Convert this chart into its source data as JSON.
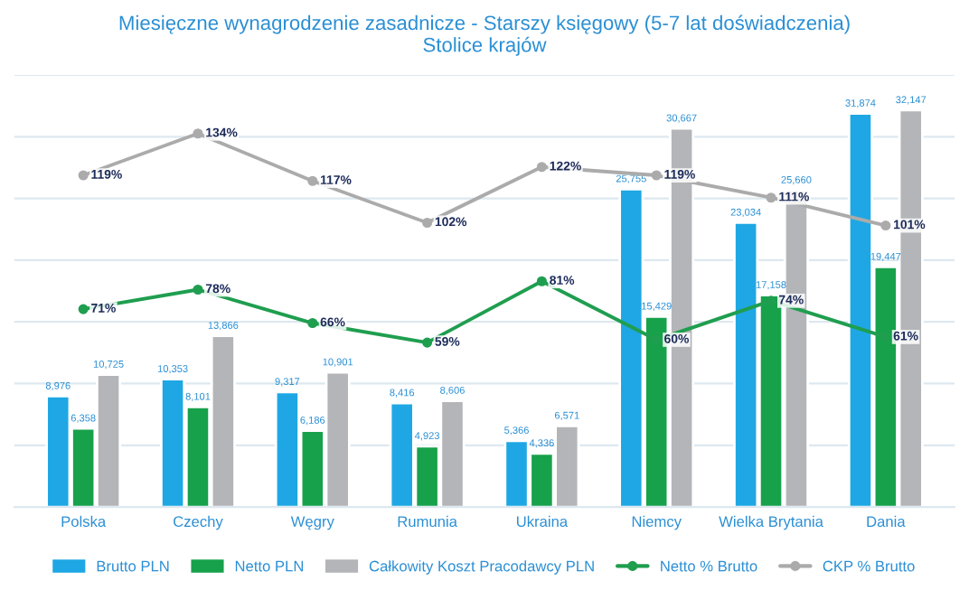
{
  "chart_data": {
    "type": "bar",
    "title": "Miesięczne wynagrodzenie zasadnicze - Starszy księgowy (5-7 lat doświadczenia)\nStolice krajów",
    "categories": [
      "Polska",
      "Czechy",
      "Węgry",
      "Rumunia",
      "Ukraina",
      "Niemcy",
      "Wielka Brytania",
      "Dania"
    ],
    "series": [
      {
        "name": "Brutto PLN",
        "color": "#1ea7e4",
        "values": [
          8976,
          10353,
          9317,
          8416,
          5366,
          25755,
          23034,
          31874
        ],
        "value_labels": [
          "8,976",
          "10,353",
          "9,317",
          "8,416",
          "5,366",
          "25,755",
          "23,034",
          "31,874"
        ]
      },
      {
        "name": "Netto PLN",
        "color": "#17a14b",
        "values": [
          6358,
          8101,
          6186,
          4923,
          4336,
          15429,
          17158,
          19447
        ],
        "value_labels": [
          "6,358",
          "8,101",
          "6,186",
          "4,923",
          "4,336",
          "15,429",
          "17,158",
          "19,447"
        ]
      },
      {
        "name": "Całkowity Koszt Pracodawcy PLN",
        "color": "#b4b5b8",
        "values": [
          10725,
          13866,
          10901,
          8606,
          6571,
          30667,
          25660,
          32147
        ],
        "value_labels": [
          "10,725",
          "13,866",
          "10,901",
          "8,606",
          "6,571",
          "30,667",
          "25,660",
          "32,147"
        ]
      },
      {
        "name": "Netto % Brutto",
        "type": "line",
        "axis": "y2",
        "color": "#1f9e4f",
        "marker": "circle",
        "values": [
          71,
          78,
          66,
          59,
          81,
          60,
          74,
          61
        ],
        "value_labels": [
          "71%",
          "78%",
          "66%",
          "59%",
          "81%",
          "60%",
          "74%",
          "61%"
        ]
      },
      {
        "name": "CKP % Brutto",
        "type": "line",
        "axis": "y2",
        "color": "#ababab",
        "marker": "circle",
        "values": [
          119,
          134,
          117,
          102,
          122,
          119,
          111,
          101
        ],
        "value_labels": [
          "119%",
          "134%",
          "117%",
          "102%",
          "122%",
          "119%",
          "111%",
          "101%"
        ]
      }
    ],
    "ylim": [
      0,
      35000
    ],
    "yticks": [
      {
        "value": 0,
        "label": null
      },
      {
        "value": 5000,
        "label": null
      },
      {
        "value": 10000,
        "label": null
      },
      {
        "value": 15000,
        "label": null
      },
      {
        "value": 20000,
        "label": null
      },
      {
        "value": 25000,
        "label": null
      },
      {
        "value": 30000,
        "label": null
      },
      {
        "value": 35000,
        "label": null
      }
    ],
    "y2lim": [
      0,
      155
    ],
    "tick_labels": "x",
    "grid": "y",
    "legend": "bottom"
  }
}
